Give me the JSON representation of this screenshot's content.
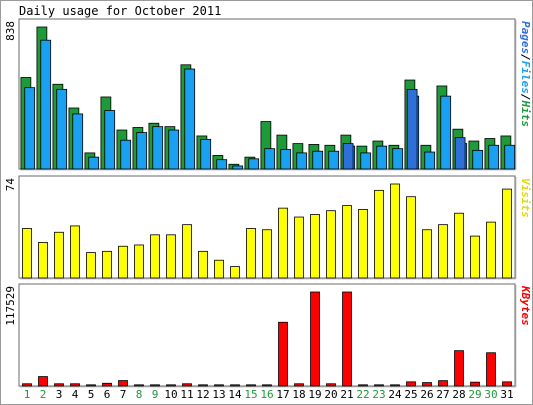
{
  "chart_data": {
    "type": "bar",
    "title": "Daily usage for October 2011",
    "categories": [
      "1",
      "2",
      "3",
      "4",
      "5",
      "6",
      "7",
      "8",
      "9",
      "10",
      "11",
      "12",
      "13",
      "14",
      "15",
      "16",
      "17",
      "18",
      "19",
      "20",
      "21",
      "22",
      "23",
      "24",
      "25",
      "26",
      "27",
      "28",
      "29",
      "30",
      "31"
    ],
    "weekend_days": [
      "1",
      "2",
      "8",
      "9",
      "15",
      "16",
      "22",
      "23",
      "29",
      "30"
    ],
    "panels": [
      {
        "id": "hits",
        "ylabel_max": "838",
        "ymax": 838,
        "legend": [
          {
            "name": "Pages",
            "color": "#2e6fd8"
          },
          {
            "name": "Files",
            "color": "#1aa0f0"
          },
          {
            "name": "Hits",
            "color": "#1f9a3a"
          }
        ],
        "series": [
          {
            "name": "Hits",
            "color": "#1f9a3a",
            "values": [
              540,
              838,
              500,
              360,
              95,
              425,
              230,
              245,
              270,
              250,
              615,
              195,
              80,
              28,
              70,
              280,
              200,
              150,
              145,
              140,
              200,
              135,
              165,
              140,
              525,
              140,
              490,
              235,
              165,
              180,
              195
            ]
          },
          {
            "name": "Files",
            "color": "#1aa0f0",
            "values": [
              480,
              760,
              470,
              325,
              70,
              345,
              170,
              215,
              250,
              230,
              590,
              175,
              55,
              18,
              60,
              120,
              115,
              95,
              105,
              105,
              135,
              95,
              135,
              120,
              430,
              100,
              430,
              150,
              110,
              140,
              140
            ]
          },
          {
            "name": "Pages",
            "color": "#2e6fd8",
            "values": [
              0,
              0,
              0,
              0,
              0,
              0,
              0,
              0,
              0,
              0,
              0,
              0,
              0,
              0,
              0,
              0,
              0,
              0,
              0,
              0,
              150,
              0,
              0,
              0,
              470,
              0,
              0,
              185,
              0,
              0,
              0
            ]
          }
        ]
      },
      {
        "id": "visits",
        "ylabel_max": "74",
        "ymax": 74,
        "legend": [
          {
            "name": "Visits",
            "color": "#e6d800"
          }
        ],
        "series": [
          {
            "name": "Visits",
            "color": "#ffff00",
            "values": [
              39,
              28,
              36,
              41,
              20,
              21,
              25,
              26,
              34,
              34,
              42,
              21,
              14,
              9,
              39,
              38,
              55,
              48,
              50,
              53,
              57,
              54,
              69,
              74,
              64,
              38,
              42,
              51,
              33,
              44,
              70
            ]
          }
        ]
      },
      {
        "id": "kbytes",
        "ylabel_max": "117529",
        "ymax": 117529,
        "legend": [
          {
            "name": "KBytes",
            "color": "#ff0000"
          }
        ],
        "series": [
          {
            "name": "KBytes",
            "color": "#ff0000",
            "values": [
              2800,
              11800,
              2800,
              2800,
              1500,
              3400,
              6800,
              1500,
              1500,
              1500,
              2800,
              1500,
              1500,
              1500,
              1500,
              1500,
              79700,
              2800,
              117529,
              2800,
              117529,
              1500,
              1500,
              1500,
              5200,
              4300,
              6700,
              44200,
              4800,
              41600,
              5200
            ]
          }
        ]
      }
    ]
  }
}
